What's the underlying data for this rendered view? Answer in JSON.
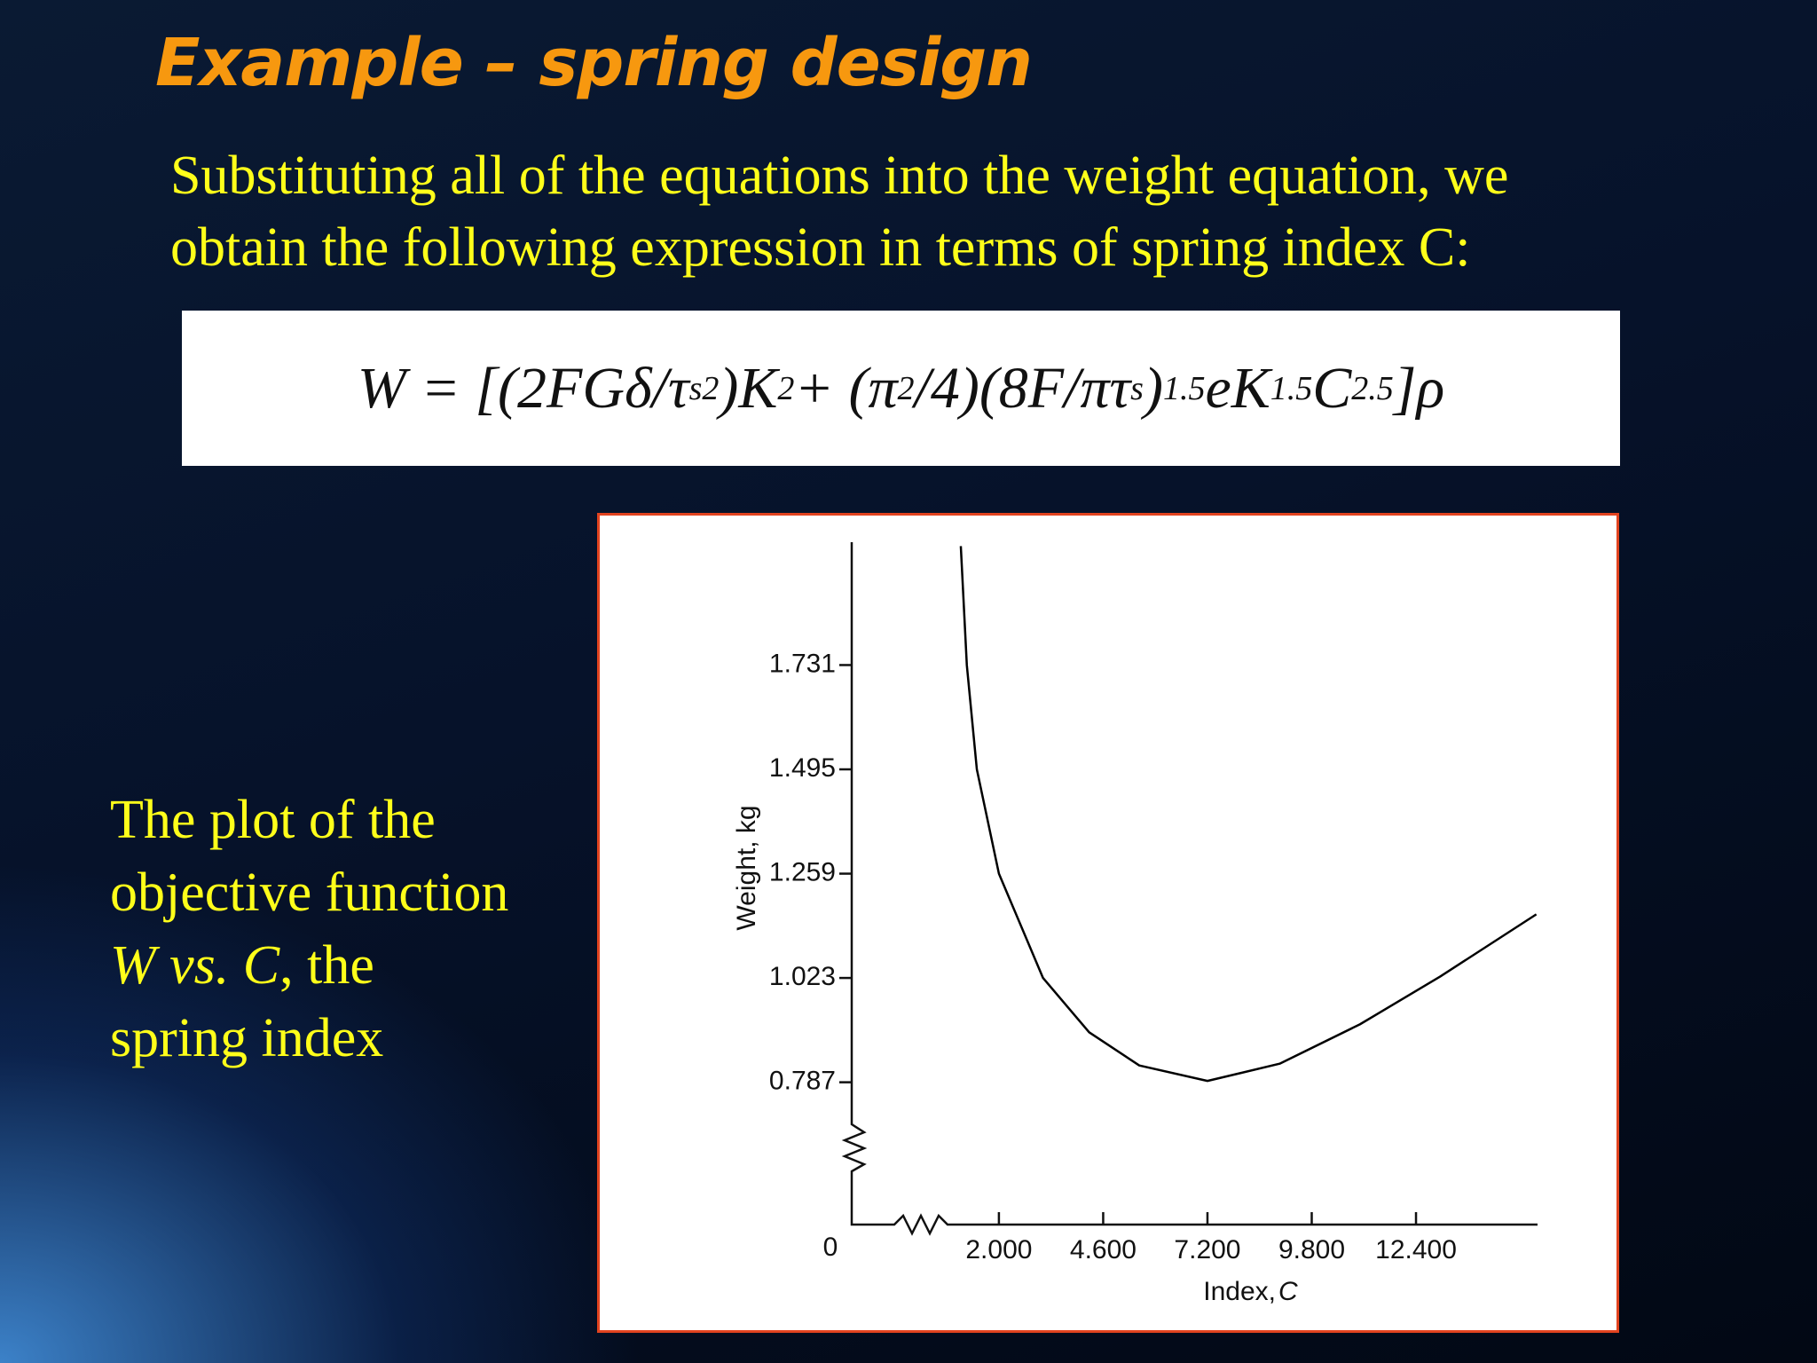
{
  "slide": {
    "title": "Example – spring design",
    "body": [
      "Substituting all of the equations into the weight equation, we",
      "obtain the following expression in terms of spring index C:"
    ],
    "formula": [
      "W = [(2FGδ/τ",
      "s",
      "2",
      ")K",
      "2",
      " + (π",
      "2",
      "/4)(8F/πτ",
      "s",
      ")",
      "1.5",
      "eK",
      "1.5",
      "C",
      "2.5",
      "]ρ"
    ],
    "side_text": [
      "The plot of the",
      "objective function",
      "W vs. C",
      ", the",
      "spring index"
    ]
  },
  "chart_data": {
    "type": "line",
    "ylabel": "Weight, kg",
    "xlabel": [
      "Index,",
      "C"
    ],
    "origin_label": "0",
    "x": [
      1.05,
      1.2,
      1.45,
      2.0,
      3.1,
      4.25,
      5.5,
      7.2,
      9.0,
      11.0,
      13.0,
      15.4
    ],
    "values": [
      2.0,
      1.731,
      1.495,
      1.259,
      1.023,
      0.9,
      0.825,
      0.79,
      0.829,
      0.918,
      1.026,
      1.167
    ],
    "color": "#000000",
    "xlim": [
      -1.67,
      15.43
    ],
    "ylim": [
      0.465,
      2.009
    ],
    "xticks": [
      {
        "value": 2,
        "label": "2.000"
      },
      {
        "value": 4.6,
        "label": "4.600"
      },
      {
        "value": 7.2,
        "label": "7.200"
      },
      {
        "value": 9.8,
        "label": "9.800"
      },
      {
        "value": 12.4,
        "label": "12.400"
      }
    ],
    "yticks": [
      0.787,
      1.023,
      1.259,
      1.495,
      1.731
    ]
  }
}
